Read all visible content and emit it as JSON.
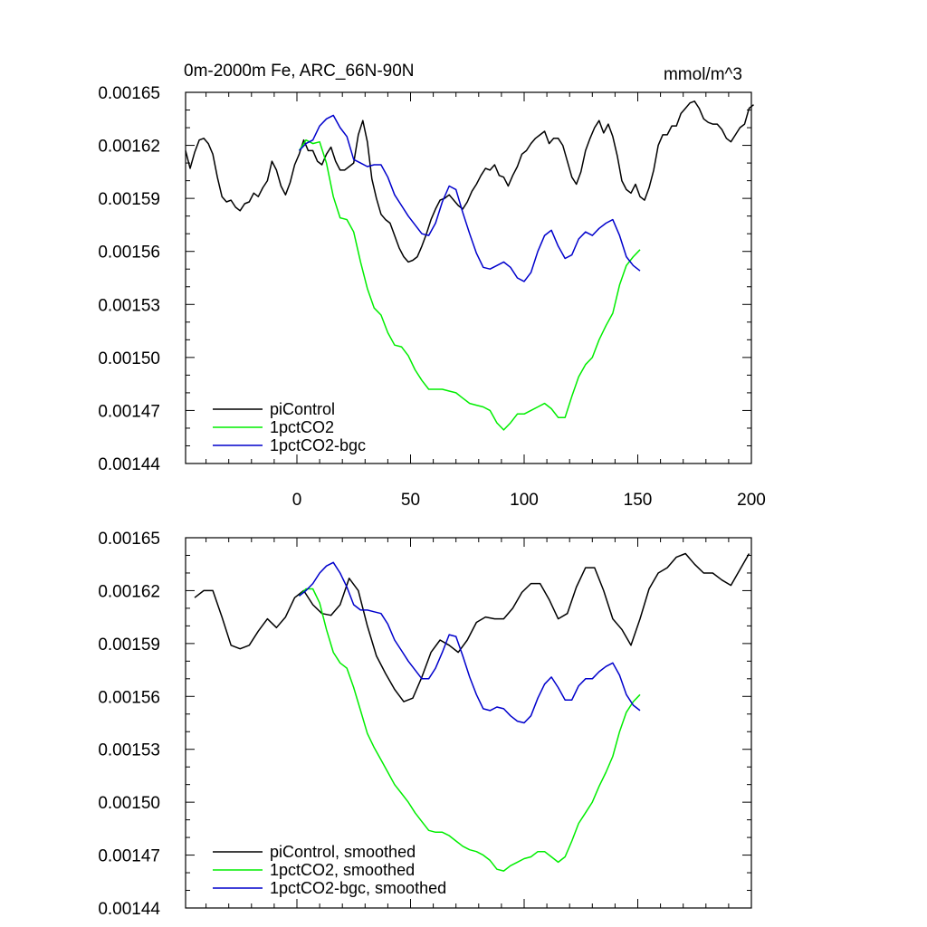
{
  "chart_data": [
    {
      "type": "line",
      "title": "0m-2000m Fe, ARC_66N-90N",
      "units": "mmol/m^3",
      "xlim": [
        -49,
        200
      ],
      "ylim": [
        0.00144,
        0.00165
      ],
      "x_ticks": [
        0,
        50,
        100,
        150,
        200
      ],
      "y_ticks": [
        "0.00144",
        "0.00147",
        "0.00150",
        "0.00153",
        "0.00156",
        "0.00159",
        "0.00162",
        "0.00165"
      ],
      "legend": "bottom-left",
      "series": [
        {
          "name": "piControl",
          "color": "#000000",
          "x": [
            -49,
            -47,
            -45,
            -43,
            -41,
            -39,
            -37,
            -35,
            -33,
            -31,
            -29,
            -27,
            -25,
            -23,
            -21,
            -19,
            -17,
            -15,
            -13,
            -11,
            -9,
            -7,
            -5,
            -3,
            -1,
            1,
            3,
            5,
            7,
            9,
            11,
            13,
            15,
            17,
            19,
            21,
            23,
            25,
            27,
            29,
            31,
            33,
            35,
            37,
            39,
            41,
            43,
            45,
            47,
            49,
            51,
            53,
            55,
            57,
            59,
            61,
            63,
            65,
            67,
            69,
            71,
            73,
            75,
            77,
            79,
            81,
            83,
            85,
            87,
            89,
            91,
            93,
            95,
            97,
            99,
            101,
            103,
            105,
            107,
            109,
            111,
            113,
            115,
            117,
            119,
            121,
            123,
            125,
            127,
            129,
            131,
            133,
            135,
            137,
            139,
            141,
            143,
            145,
            147,
            149,
            151,
            153,
            155,
            157,
            159,
            161,
            163,
            165,
            167,
            169,
            171,
            173,
            175,
            177,
            179,
            181,
            183,
            185,
            187,
            189,
            191,
            193,
            195,
            197,
            199,
            201
          ],
          "values": [
            0.001617,
            0.001607,
            0.001616,
            0.001623,
            0.001624,
            0.001621,
            0.001615,
            0.001602,
            0.001591,
            0.001588,
            0.001589,
            0.001585,
            0.001583,
            0.001587,
            0.001588,
            0.001593,
            0.001591,
            0.001596,
            0.0016,
            0.001611,
            0.001606,
            0.001597,
            0.001592,
            0.001599,
            0.001609,
            0.001615,
            0.001623,
            0.001617,
            0.001617,
            0.001611,
            0.001609,
            0.001615,
            0.001619,
            0.001611,
            0.001606,
            0.001606,
            0.001608,
            0.00161,
            0.001626,
            0.001634,
            0.001622,
            0.001601,
            0.00159,
            0.001581,
            0.001578,
            0.001576,
            0.001569,
            0.001562,
            0.001557,
            0.001554,
            0.001555,
            0.001557,
            0.001563,
            0.00157,
            0.001578,
            0.001584,
            0.001589,
            0.00159,
            0.001592,
            0.001589,
            0.001586,
            0.001584,
            0.001588,
            0.001594,
            0.001598,
            0.001603,
            0.001607,
            0.001606,
            0.001609,
            0.001603,
            0.001602,
            0.001597,
            0.001603,
            0.001608,
            0.001615,
            0.001617,
            0.001621,
            0.001624,
            0.001626,
            0.001628,
            0.001621,
            0.001624,
            0.001624,
            0.00162,
            0.001611,
            0.001602,
            0.001598,
            0.001605,
            0.001617,
            0.001624,
            0.00163,
            0.001634,
            0.001627,
            0.001632,
            0.001625,
            0.001614,
            0.0016,
            0.001595,
            0.001593,
            0.001598,
            0.001591,
            0.001589,
            0.001596,
            0.001606,
            0.00162,
            0.001626,
            0.001626,
            0.001631,
            0.001631,
            0.001638,
            0.001641,
            0.001644,
            0.001645,
            0.001641,
            0.001635,
            0.001633,
            0.001632,
            0.001632,
            0.001629,
            0.001624,
            0.001622,
            0.001626,
            0.00163,
            0.001632,
            0.001641,
            0.001643
          ]
        },
        {
          "name": "1pctCO2",
          "color": "#00ee00",
          "x": [
            1,
            4,
            7,
            10,
            13,
            16,
            19,
            22,
            25,
            28,
            31,
            34,
            37,
            40,
            43,
            46,
            49,
            52,
            55,
            58,
            61,
            64,
            67,
            70,
            73,
            76,
            79,
            82,
            85,
            88,
            91,
            94,
            97,
            100,
            103,
            106,
            109,
            112,
            115,
            118,
            121,
            124,
            127,
            130,
            133,
            136,
            139,
            142,
            145,
            148,
            151
          ],
          "values": [
            0.001617,
            0.001623,
            0.001621,
            0.001622,
            0.00161,
            0.001591,
            0.001579,
            0.001578,
            0.001571,
            0.001554,
            0.001539,
            0.001528,
            0.001524,
            0.001514,
            0.001507,
            0.001506,
            0.001501,
            0.001493,
            0.001487,
            0.001482,
            0.001482,
            0.001482,
            0.001481,
            0.00148,
            0.001477,
            0.001474,
            0.001473,
            0.001472,
            0.00147,
            0.001463,
            0.001459,
            0.001463,
            0.001468,
            0.001468,
            0.00147,
            0.001472,
            0.001474,
            0.001471,
            0.001466,
            0.001466,
            0.001478,
            0.001489,
            0.001496,
            0.0015,
            0.00151,
            0.001518,
            0.001525,
            0.001541,
            0.001552,
            0.001557,
            0.001561
          ]
        },
        {
          "name": "1pctCO2-bgc",
          "color": "#0000cc",
          "x": [
            1,
            4,
            7,
            10,
            13,
            16,
            19,
            22,
            25,
            28,
            31,
            34,
            37,
            40,
            43,
            46,
            49,
            52,
            55,
            58,
            61,
            64,
            67,
            70,
            73,
            76,
            79,
            82,
            85,
            88,
            91,
            94,
            97,
            100,
            103,
            106,
            109,
            112,
            115,
            118,
            121,
            124,
            127,
            130,
            133,
            136,
            139,
            142,
            145,
            148,
            151
          ],
          "values": [
            0.001617,
            0.001621,
            0.001623,
            0.001631,
            0.001635,
            0.001637,
            0.00163,
            0.001625,
            0.001612,
            0.00161,
            0.001608,
            0.001609,
            0.001609,
            0.001602,
            0.001592,
            0.001586,
            0.00158,
            0.001575,
            0.00157,
            0.001569,
            0.001576,
            0.001588,
            0.001597,
            0.001595,
            0.001582,
            0.00157,
            0.001559,
            0.001551,
            0.00155,
            0.001552,
            0.001554,
            0.001551,
            0.001545,
            0.001543,
            0.001548,
            0.00156,
            0.001569,
            0.001572,
            0.001563,
            0.001556,
            0.001558,
            0.001567,
            0.001571,
            0.001569,
            0.001573,
            0.001576,
            0.001578,
            0.001569,
            0.001557,
            0.001552,
            0.001549
          ]
        }
      ]
    },
    {
      "type": "line",
      "title": "",
      "xlim": [
        -49,
        200
      ],
      "ylim": [
        0.00144,
        0.00165
      ],
      "y_ticks": [
        "0.00144",
        "0.00147",
        "0.00150",
        "0.00153",
        "0.00156",
        "0.00159",
        "0.00162",
        "0.00165"
      ],
      "legend": "bottom-left",
      "series": [
        {
          "name": "piControl, smoothed",
          "color": "#000000",
          "x": [
            -45,
            -41,
            -37,
            -33,
            -29,
            -25,
            -21,
            -17,
            -13,
            -9,
            -5,
            -1,
            3,
            7,
            11,
            15,
            19,
            23,
            27,
            31,
            35,
            39,
            43,
            47,
            51,
            55,
            59,
            63,
            67,
            71,
            75,
            79,
            83,
            87,
            91,
            95,
            99,
            103,
            107,
            111,
            115,
            119,
            123,
            127,
            131,
            135,
            139,
            143,
            147,
            151,
            155,
            159,
            163,
            167,
            171,
            175,
            179,
            183,
            187,
            191,
            195,
            199
          ],
          "values": [
            0.001616,
            0.00162,
            0.00162,
            0.001605,
            0.001589,
            0.001587,
            0.001589,
            0.001597,
            0.001604,
            0.001599,
            0.001605,
            0.001616,
            0.00162,
            0.001612,
            0.001607,
            0.001606,
            0.001612,
            0.001627,
            0.00162,
            0.0016,
            0.001583,
            0.001573,
            0.001564,
            0.001557,
            0.001559,
            0.001571,
            0.001585,
            0.001592,
            0.001589,
            0.001585,
            0.001592,
            0.001602,
            0.001605,
            0.001604,
            0.001604,
            0.00161,
            0.001619,
            0.001624,
            0.001624,
            0.001615,
            0.001604,
            0.001607,
            0.001622,
            0.001633,
            0.001633,
            0.00162,
            0.001604,
            0.001598,
            0.001589,
            0.001604,
            0.001621,
            0.00163,
            0.001633,
            0.001639,
            0.001641,
            0.001635,
            0.00163,
            0.00163,
            0.001626,
            0.001623,
            0.001632,
            0.001641
          ]
        },
        {
          "name": "1pctCO2, smoothed",
          "color": "#00ee00",
          "x": [
            1,
            4,
            7,
            10,
            13,
            16,
            19,
            22,
            25,
            28,
            31,
            34,
            37,
            40,
            43,
            46,
            49,
            52,
            55,
            58,
            61,
            64,
            67,
            70,
            73,
            76,
            79,
            82,
            85,
            88,
            91,
            94,
            97,
            100,
            103,
            106,
            109,
            112,
            115,
            118,
            121,
            124,
            127,
            130,
            133,
            136,
            139,
            142,
            145,
            148,
            151
          ],
          "values": [
            0.001617,
            0.001621,
            0.001621,
            0.001613,
            0.001598,
            0.001585,
            0.001579,
            0.001576,
            0.001565,
            0.001552,
            0.001539,
            0.001531,
            0.001524,
            0.001517,
            0.00151,
            0.001505,
            0.0015,
            0.001494,
            0.001489,
            0.001484,
            0.001483,
            0.001483,
            0.001481,
            0.001478,
            0.001475,
            0.001473,
            0.001472,
            0.00147,
            0.001467,
            0.001462,
            0.001461,
            0.001464,
            0.001466,
            0.001468,
            0.001469,
            0.001472,
            0.001472,
            0.001469,
            0.001466,
            0.001469,
            0.001478,
            0.001488,
            0.001494,
            0.0015,
            0.001509,
            0.001517,
            0.001526,
            0.00154,
            0.001551,
            0.001557,
            0.001561
          ]
        },
        {
          "name": "1pctCO2-bgc, smoothed",
          "color": "#0000cc",
          "x": [
            1,
            4,
            7,
            10,
            13,
            16,
            19,
            22,
            25,
            28,
            31,
            34,
            37,
            40,
            43,
            46,
            49,
            52,
            55,
            58,
            61,
            64,
            67,
            70,
            73,
            76,
            79,
            82,
            85,
            88,
            91,
            94,
            97,
            100,
            103,
            106,
            109,
            112,
            115,
            118,
            121,
            124,
            127,
            130,
            133,
            136,
            139,
            142,
            145,
            148,
            151
          ],
          "values": [
            0.001617,
            0.00162,
            0.001624,
            0.00163,
            0.001634,
            0.001636,
            0.00163,
            0.001622,
            0.001612,
            0.001609,
            0.001609,
            0.001608,
            0.001607,
            0.001601,
            0.001592,
            0.001586,
            0.00158,
            0.001575,
            0.00157,
            0.00157,
            0.001576,
            0.001585,
            0.001595,
            0.001594,
            0.001583,
            0.001571,
            0.001561,
            0.001553,
            0.001552,
            0.001554,
            0.001553,
            0.001549,
            0.001546,
            0.001545,
            0.001549,
            0.001559,
            0.001567,
            0.001571,
            0.001565,
            0.001558,
            0.001558,
            0.001566,
            0.00157,
            0.00157,
            0.001574,
            0.001577,
            0.001579,
            0.001572,
            0.001561,
            0.001555,
            0.001552
          ]
        }
      ]
    }
  ]
}
